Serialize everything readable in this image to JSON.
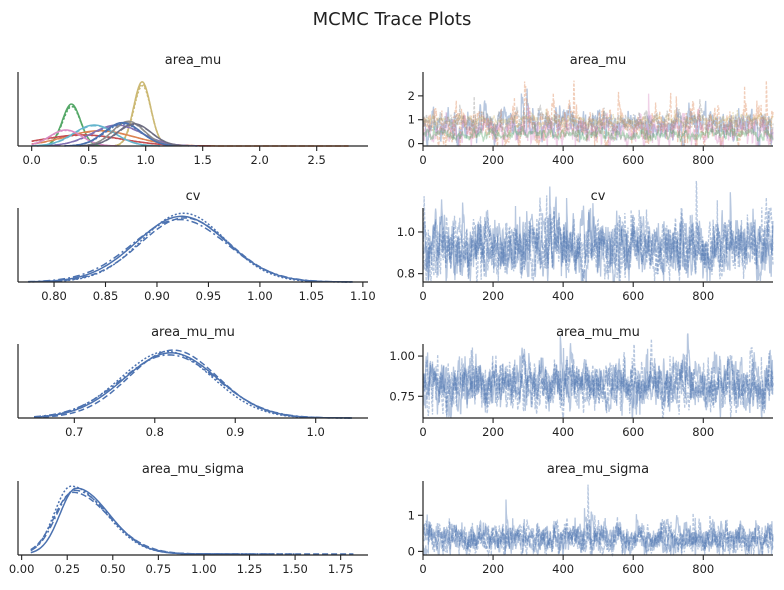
{
  "figure": {
    "title": "MCMC Trace Plots"
  },
  "chart_data": [
    {
      "id": "area_mu-density",
      "type": "line",
      "title": "area_mu",
      "xlim": [
        -0.12,
        2.95
      ],
      "ylim": [
        0,
        3.0
      ],
      "y_ticks_shown": false,
      "x_ticks": [
        0.0,
        0.5,
        1.0,
        1.5,
        2.0,
        2.5
      ],
      "x_tick_labels": [
        "0.0",
        "0.5",
        "1.0",
        "1.5",
        "2.0",
        "2.5"
      ],
      "series": [
        {
          "color": "#55a868",
          "mean": 0.35,
          "sd": 0.08,
          "peak": 1.7,
          "dashes": [
            "none",
            "6,3",
            "2,2"
          ]
        },
        {
          "color": "#ccb974",
          "mean": 0.97,
          "sd": 0.075,
          "peak": 2.6,
          "dashes": [
            "none",
            "6,3",
            "2,2"
          ]
        },
        {
          "color": "#dd8452",
          "mean": 0.6,
          "sd": 0.3,
          "peak": 0.62,
          "dashes": [
            "none",
            "6,3"
          ],
          "tail_to": 2.78
        },
        {
          "color": "#c44e52",
          "mean": 0.45,
          "sd": 0.35,
          "peak": 0.45,
          "dashes": [
            "none",
            "2,2"
          ]
        },
        {
          "color": "#8172b3",
          "mean": 0.75,
          "sd": 0.22,
          "peak": 0.85,
          "dashes": [
            "none",
            "6,3"
          ]
        },
        {
          "color": "#64b5cd",
          "mean": 0.55,
          "sd": 0.18,
          "peak": 0.85,
          "dashes": [
            "none",
            "6,3"
          ]
        },
        {
          "color": "#da8bc3",
          "mean": 0.3,
          "sd": 0.14,
          "peak": 0.65,
          "dashes": [
            "none",
            "2,2"
          ]
        },
        {
          "color": "#8c8c8c",
          "mean": 0.85,
          "sd": 0.14,
          "peak": 1.0,
          "dashes": [
            "none",
            "6,3"
          ]
        },
        {
          "color": "#4c72b0",
          "mean": 0.8,
          "sd": 0.16,
          "peak": 0.95,
          "dashes": [
            "none",
            "6,3",
            "2,2"
          ]
        },
        {
          "color": "#6e6e82",
          "mean": 0.9,
          "sd": 0.15,
          "peak": 0.9,
          "dashes": [
            "none",
            "6,3"
          ]
        }
      ]
    },
    {
      "id": "area_mu-trace",
      "type": "line",
      "title": "area_mu",
      "xlim": [
        0,
        999
      ],
      "ylim": [
        -0.1,
        3.0
      ],
      "x_ticks": [
        0,
        200,
        400,
        600,
        800
      ],
      "x_tick_labels": [
        "0",
        "200",
        "400",
        "600",
        "800"
      ],
      "y_ticks": [
        0,
        1,
        2
      ],
      "y_tick_labels": [
        "0",
        "1",
        "2"
      ],
      "draws": 1000,
      "series": [
        {
          "color": "#4c72b0",
          "mean": 0.8,
          "noise": 0.25,
          "spike": 2.1
        },
        {
          "color": "#dd8452",
          "mean": 0.75,
          "noise": 0.3,
          "spike": 2.6
        },
        {
          "color": "#da8bc3",
          "mean": 0.5,
          "noise": 0.2,
          "spike": 1.6
        },
        {
          "color": "#ccb974",
          "mean": 0.97,
          "noise": 0.08,
          "spike": 1.3
        },
        {
          "color": "#55a868",
          "mean": 0.35,
          "noise": 0.08,
          "spike": 0.8
        },
        {
          "color": "#8c8c8c",
          "mean": 0.85,
          "noise": 0.15,
          "spike": 1.5
        }
      ]
    },
    {
      "id": "cv-density",
      "type": "line",
      "title": "cv",
      "xlim": [
        0.765,
        1.105
      ],
      "ylim": [
        0,
        14.2
      ],
      "y_ticks_shown": false,
      "x_ticks": [
        0.8,
        0.85,
        0.9,
        0.95,
        1.0,
        1.05,
        1.1
      ],
      "x_tick_labels": [
        "0.80",
        "0.85",
        "0.90",
        "0.95",
        "1.00",
        "1.05",
        "1.10"
      ],
      "range": [
        0.775,
        1.09
      ],
      "series": [
        {
          "color": "#4c72b0",
          "mean": 0.924,
          "sd": 0.044,
          "peak": 12.6,
          "dash": "none"
        },
        {
          "color": "#4c72b0",
          "mean": 0.927,
          "sd": 0.043,
          "peak": 12.3,
          "dash": "6,3"
        },
        {
          "color": "#4c72b0",
          "mean": 0.926,
          "sd": 0.041,
          "peak": 13.2,
          "dash": "2,2"
        },
        {
          "color": "#4c72b0",
          "mean": 0.922,
          "sd": 0.046,
          "peak": 12.0,
          "dash": "7,3,2,3"
        }
      ]
    },
    {
      "id": "cv-trace",
      "type": "line",
      "title": "cv",
      "xlim": [
        0,
        999
      ],
      "ylim": [
        0.76,
        1.115
      ],
      "x_ticks": [
        0,
        200,
        400,
        600,
        800
      ],
      "x_tick_labels": [
        "0",
        "200",
        "400",
        "600",
        "800"
      ],
      "y_ticks": [
        0.8,
        1.0
      ],
      "y_tick_labels": [
        "0.8",
        "1.0"
      ],
      "draws": 1000,
      "series": [
        {
          "color": "#4c72b0",
          "mean": 0.925,
          "noise": 0.045,
          "spike": 1.09
        },
        {
          "color": "#4c72b0",
          "mean": 0.925,
          "noise": 0.045,
          "spike": 1.07
        },
        {
          "color": "#4c72b0",
          "mean": 0.925,
          "noise": 0.045,
          "spike": 1.08
        },
        {
          "color": "#4c72b0",
          "mean": 0.925,
          "noise": 0.045,
          "spike": 1.06
        }
      ]
    },
    {
      "id": "area_mu_mu-density",
      "type": "line",
      "title": "area_mu_mu",
      "xlim": [
        0.63,
        1.065
      ],
      "ylim": [
        0,
        10.9
      ],
      "y_ticks_shown": false,
      "x_ticks": [
        0.7,
        0.8,
        0.9,
        1.0
      ],
      "x_tick_labels": [
        "0.7",
        "0.8",
        "0.9",
        "1.0"
      ],
      "range": [
        0.65,
        1.045
      ],
      "series": [
        {
          "color": "#4c72b0",
          "mean": 0.82,
          "sd": 0.058,
          "peak": 9.6,
          "dash": "none"
        },
        {
          "color": "#4c72b0",
          "mean": 0.823,
          "sd": 0.055,
          "peak": 10.0,
          "dash": "6,3"
        },
        {
          "color": "#4c72b0",
          "mean": 0.815,
          "sd": 0.057,
          "peak": 9.8,
          "dash": "2,2"
        },
        {
          "color": "#4c72b0",
          "mean": 0.818,
          "sd": 0.06,
          "peak": 9.3,
          "dash": "7,3,2,3"
        }
      ]
    },
    {
      "id": "area_mu_mu-trace",
      "type": "line",
      "title": "area_mu_mu",
      "xlim": [
        0,
        999
      ],
      "ylim": [
        0.615,
        1.075
      ],
      "x_ticks": [
        0,
        200,
        400,
        600,
        800
      ],
      "x_tick_labels": [
        "0",
        "200",
        "400",
        "600",
        "800"
      ],
      "y_ticks": [
        0.75,
        1.0
      ],
      "y_tick_labels": [
        "0.75",
        "1.00"
      ],
      "draws": 1000,
      "series": [
        {
          "color": "#4c72b0",
          "mean": 0.82,
          "noise": 0.05,
          "spike": 1.05
        },
        {
          "color": "#4c72b0",
          "mean": 0.82,
          "noise": 0.05,
          "spike": 1.0
        },
        {
          "color": "#4c72b0",
          "mean": 0.82,
          "noise": 0.05,
          "spike": 1.03
        },
        {
          "color": "#4c72b0",
          "mean": 0.82,
          "noise": 0.05,
          "spike": 0.98
        }
      ]
    },
    {
      "id": "area_mu_sigma-density",
      "type": "line",
      "title": "area_mu_sigma",
      "xlim": [
        -0.02,
        1.9
      ],
      "ylim": [
        0,
        3.6
      ],
      "y_ticks_shown": false,
      "x_ticks": [
        0.0,
        0.25,
        0.5,
        0.75,
        1.0,
        1.25,
        1.5,
        1.75
      ],
      "x_tick_labels": [
        "0.00",
        "0.25",
        "0.50",
        "0.75",
        "1.00",
        "1.25",
        "1.50",
        "1.75"
      ],
      "range": [
        0.05,
        1.82
      ],
      "series": [
        {
          "color": "#4c72b0",
          "mode": 0.3,
          "sdl": 0.09,
          "sdr": 0.18,
          "peak": 3.2,
          "dash": "none",
          "end": 1.2
        },
        {
          "color": "#4c72b0",
          "mode": 0.28,
          "sdl": 0.1,
          "sdr": 0.2,
          "peak": 3.0,
          "dash": "6,3",
          "end": 1.82
        },
        {
          "color": "#4c72b0",
          "mode": 0.27,
          "sdl": 0.09,
          "sdr": 0.19,
          "peak": 3.3,
          "dash": "2,2",
          "end": 1.5
        },
        {
          "color": "#4c72b0",
          "mode": 0.29,
          "sdl": 0.1,
          "sdr": 0.19,
          "peak": 3.1,
          "dash": "7,3,2,3",
          "end": 1.4
        }
      ]
    },
    {
      "id": "area_mu_sigma-trace",
      "type": "line",
      "title": "area_mu_sigma",
      "xlim": [
        0,
        999
      ],
      "ylim": [
        -0.1,
        1.95
      ],
      "x_ticks": [
        0,
        200,
        400,
        600,
        800
      ],
      "x_tick_labels": [
        "0",
        "200",
        "400",
        "600",
        "800"
      ],
      "y_ticks": [
        0,
        1
      ],
      "y_tick_labels": [
        "0",
        "1"
      ],
      "draws": 1000,
      "series": [
        {
          "color": "#4c72b0",
          "mean": 0.33,
          "noise": 0.13,
          "spike": 1.2
        },
        {
          "color": "#4c72b0",
          "mean": 0.33,
          "noise": 0.13,
          "spike": 1.85
        },
        {
          "color": "#4c72b0",
          "mean": 0.33,
          "noise": 0.13,
          "spike": 1.1
        },
        {
          "color": "#4c72b0",
          "mean": 0.33,
          "noise": 0.13,
          "spike": 1.0
        }
      ]
    }
  ]
}
